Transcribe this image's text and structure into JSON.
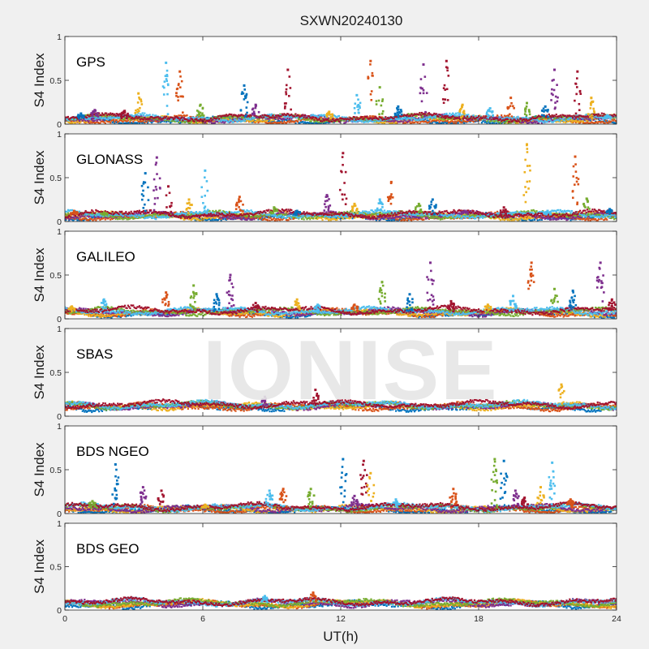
{
  "figure": {
    "title": "SXWN20240130",
    "watermark": "IONISE",
    "colors": [
      "#0072bd",
      "#d95319",
      "#edb120",
      "#7e2f8e",
      "#77ac30",
      "#4dbeee",
      "#a2142f"
    ]
  },
  "chart_data": [
    {
      "type": "scatter",
      "panel": "GPS",
      "ylabel": "S4 Index",
      "xlabel": "",
      "xlim": [
        0,
        24
      ],
      "ylim": [
        0,
        1
      ],
      "yticks": [
        0,
        0.5,
        1
      ],
      "xticks": [
        0,
        6,
        12,
        18,
        24
      ],
      "baseline": 0.06,
      "spikes": [
        [
          0.7,
          0.12
        ],
        [
          1.3,
          0.16
        ],
        [
          2.6,
          0.15
        ],
        [
          3.2,
          0.35
        ],
        [
          4.4,
          0.7
        ],
        [
          5.0,
          0.6
        ],
        [
          5.9,
          0.22
        ],
        [
          7.8,
          0.44
        ],
        [
          8.3,
          0.22
        ],
        [
          9.7,
          0.62
        ],
        [
          11.5,
          0.14
        ],
        [
          12.7,
          0.33
        ],
        [
          13.3,
          0.72
        ],
        [
          13.7,
          0.42
        ],
        [
          14.5,
          0.2
        ],
        [
          15.6,
          0.68
        ],
        [
          16.6,
          0.72
        ],
        [
          17.3,
          0.22
        ],
        [
          18.5,
          0.18
        ],
        [
          19.4,
          0.3
        ],
        [
          20.1,
          0.24
        ],
        [
          20.9,
          0.2
        ],
        [
          21.3,
          0.62
        ],
        [
          22.3,
          0.6
        ],
        [
          22.9,
          0.3
        ],
        [
          23.6,
          0.1
        ]
      ]
    },
    {
      "type": "scatter",
      "panel": "GLONASS",
      "ylabel": "S4 Index",
      "xlabel": "",
      "xlim": [
        0,
        24
      ],
      "ylim": [
        0,
        1
      ],
      "yticks": [
        0,
        0.5,
        1
      ],
      "xticks": [
        0,
        6,
        12,
        18,
        24
      ],
      "baseline": 0.07,
      "spikes": [
        [
          0.4,
          0.12
        ],
        [
          1.7,
          0.1
        ],
        [
          3.5,
          0.55
        ],
        [
          4.0,
          0.73
        ],
        [
          4.5,
          0.4
        ],
        [
          5.4,
          0.25
        ],
        [
          6.1,
          0.58
        ],
        [
          7.6,
          0.28
        ],
        [
          9.1,
          0.16
        ],
        [
          10.1,
          0.12
        ],
        [
          11.4,
          0.3
        ],
        [
          12.1,
          0.78
        ],
        [
          12.6,
          0.2
        ],
        [
          13.7,
          0.25
        ],
        [
          14.2,
          0.45
        ],
        [
          15.4,
          0.2
        ],
        [
          16.0,
          0.25
        ],
        [
          17.4,
          0.12
        ],
        [
          19.1,
          0.16
        ],
        [
          20.1,
          0.88
        ],
        [
          21.0,
          0.12
        ],
        [
          22.2,
          0.74
        ],
        [
          22.7,
          0.26
        ],
        [
          23.7,
          0.14
        ]
      ]
    },
    {
      "type": "scatter",
      "panel": "GALILEO",
      "ylabel": "S4 Index",
      "xlabel": "",
      "xlim": [
        0,
        24
      ],
      "ylim": [
        0,
        1
      ],
      "yticks": [
        0,
        0.5,
        1
      ],
      "xticks": [
        0,
        6,
        12,
        18,
        24
      ],
      "baseline": 0.08,
      "spikes": [
        [
          0.3,
          0.14
        ],
        [
          1.7,
          0.22
        ],
        [
          4.4,
          0.3
        ],
        [
          5.6,
          0.38
        ],
        [
          6.6,
          0.28
        ],
        [
          7.2,
          0.5
        ],
        [
          8.3,
          0.18
        ],
        [
          10.1,
          0.22
        ],
        [
          11.0,
          0.16
        ],
        [
          12.6,
          0.16
        ],
        [
          13.8,
          0.42
        ],
        [
          15.0,
          0.28
        ],
        [
          15.9,
          0.64
        ],
        [
          16.8,
          0.2
        ],
        [
          18.4,
          0.16
        ],
        [
          19.5,
          0.26
        ],
        [
          20.3,
          0.64
        ],
        [
          21.3,
          0.34
        ],
        [
          22.1,
          0.32
        ],
        [
          23.3,
          0.64
        ],
        [
          23.8,
          0.22
        ]
      ]
    },
    {
      "type": "scatter",
      "panel": "SBAS",
      "ylabel": "S4 Index",
      "xlabel": "",
      "xlim": [
        0,
        24
      ],
      "ylim": [
        0,
        1
      ],
      "yticks": [
        0,
        0.5,
        1
      ],
      "xticks": [
        0,
        6,
        12,
        18,
        24
      ],
      "baseline": 0.12,
      "spikes": [
        [
          8.7,
          0.22
        ],
        [
          10.9,
          0.3
        ],
        [
          21.6,
          0.36
        ]
      ]
    },
    {
      "type": "scatter",
      "panel": "BDS NGEO",
      "ylabel": "S4 Index",
      "xlabel": "",
      "xlim": [
        0,
        24
      ],
      "ylim": [
        0,
        1
      ],
      "yticks": [
        0,
        0.5,
        1
      ],
      "xticks": [
        0,
        6,
        12,
        18,
        24
      ],
      "baseline": 0.06,
      "spikes": [
        [
          1.2,
          0.14
        ],
        [
          2.2,
          0.56
        ],
        [
          3.4,
          0.3
        ],
        [
          4.2,
          0.26
        ],
        [
          6.1,
          0.1
        ],
        [
          8.9,
          0.26
        ],
        [
          9.5,
          0.28
        ],
        [
          10.7,
          0.28
        ],
        [
          12.1,
          0.62
        ],
        [
          12.6,
          0.2
        ],
        [
          13.0,
          0.6
        ],
        [
          13.3,
          0.46
        ],
        [
          14.4,
          0.16
        ],
        [
          16.9,
          0.28
        ],
        [
          18.7,
          0.62
        ],
        [
          19.1,
          0.6
        ],
        [
          19.6,
          0.26
        ],
        [
          20.0,
          0.18
        ],
        [
          20.7,
          0.3
        ],
        [
          21.2,
          0.58
        ],
        [
          22.0,
          0.16
        ]
      ]
    },
    {
      "type": "scatter",
      "panel": "BDS GEO",
      "ylabel": "S4 Index",
      "xlabel": "UT(h)",
      "xlim": [
        0,
        24
      ],
      "ylim": [
        0,
        1
      ],
      "yticks": [
        0,
        0.5,
        1
      ],
      "xticks": [
        0,
        6,
        12,
        18,
        24
      ],
      "baseline": 0.08,
      "spikes": [
        [
          8.7,
          0.16
        ],
        [
          10.8,
          0.2
        ]
      ]
    }
  ]
}
